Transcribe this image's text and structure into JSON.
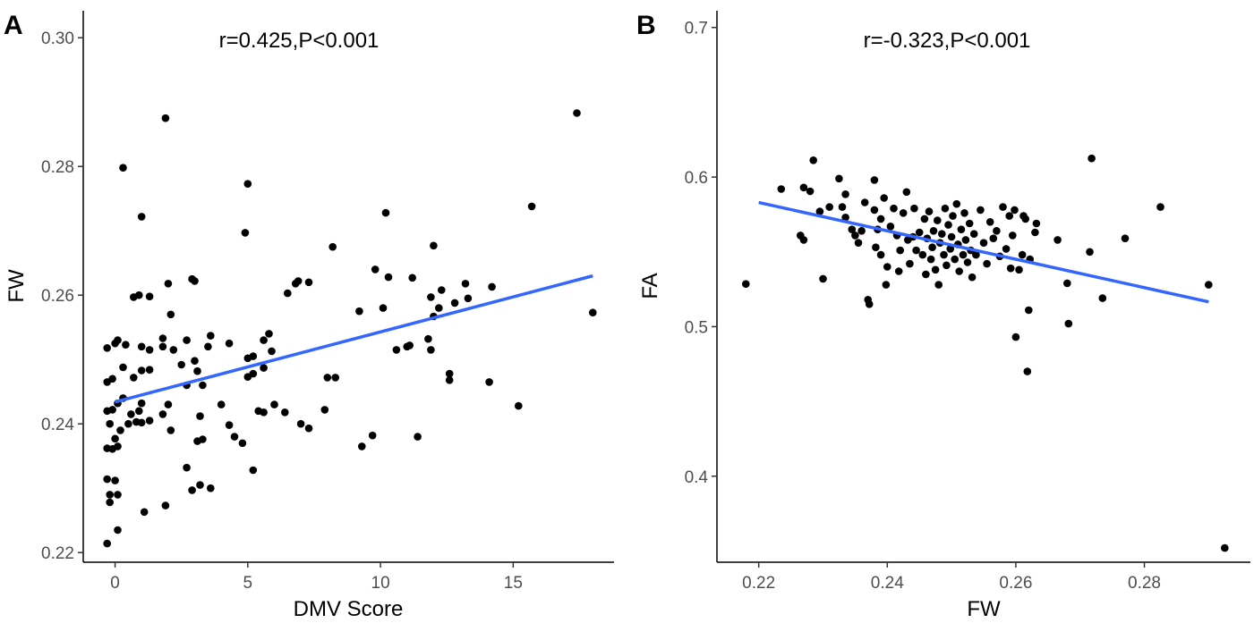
{
  "chart_data": [
    {
      "type": "scatter",
      "panel_label": "A",
      "annotation": "r=0.425,P<0.001",
      "xlabel": "DMV Score",
      "ylabel": "FW",
      "xlim": [
        -1.2,
        18.8
      ],
      "ylim": [
        0.2185,
        0.3042
      ],
      "x_ticks": [
        0,
        5,
        10,
        15
      ],
      "x_tick_labels": [
        "0",
        "5",
        "10",
        "15"
      ],
      "y_ticks": [
        0.22,
        0.24,
        0.26,
        0.28,
        0.3
      ],
      "y_tick_labels": [
        "0.22",
        "0.24",
        "0.26",
        "0.28",
        "0.30"
      ],
      "grid": false,
      "point_color": "#000000",
      "fit_line": {
        "color": "#3366FF",
        "x": [
          0,
          18
        ],
        "y": [
          0.2434,
          0.263
        ]
      },
      "points": [
        [
          -0.3,
          0.2214
        ],
        [
          -0.3,
          0.2314
        ],
        [
          -0.2,
          0.2278
        ],
        [
          -0.2,
          0.229
        ],
        [
          0.0,
          0.2312
        ],
        [
          0.1,
          0.229
        ],
        [
          0.1,
          0.2235
        ],
        [
          1.1,
          0.2263
        ],
        [
          1.9,
          0.2273
        ],
        [
          -0.3,
          0.2362
        ],
        [
          -0.1,
          0.2361
        ],
        [
          0.0,
          0.2377
        ],
        [
          0.1,
          0.2365
        ],
        [
          0.2,
          0.239
        ],
        [
          -0.2,
          0.24
        ],
        [
          0.5,
          0.24
        ],
        [
          0.8,
          0.2403
        ],
        [
          1.0,
          0.2402
        ],
        [
          1.3,
          0.2405
        ],
        [
          -0.3,
          0.242
        ],
        [
          -0.1,
          0.2422
        ],
        [
          0.1,
          0.2432
        ],
        [
          0.3,
          0.244
        ],
        [
          0.6,
          0.2415
        ],
        [
          0.9,
          0.242
        ],
        [
          1.0,
          0.2432
        ],
        [
          1.8,
          0.2415
        ],
        [
          2.0,
          0.243
        ],
        [
          2.1,
          0.239
        ],
        [
          -0.3,
          0.2465
        ],
        [
          -0.1,
          0.247
        ],
        [
          0.3,
          0.2488
        ],
        [
          0.7,
          0.2472
        ],
        [
          1.0,
          0.2483
        ],
        [
          1.3,
          0.2484
        ],
        [
          -0.3,
          0.2518
        ],
        [
          0.0,
          0.2525
        ],
        [
          0.1,
          0.253
        ],
        [
          0.4,
          0.2523
        ],
        [
          1.0,
          0.252
        ],
        [
          1.3,
          0.2515
        ],
        [
          1.8,
          0.252
        ],
        [
          2.2,
          0.2515
        ],
        [
          2.7,
          0.253
        ],
        [
          0.7,
          0.2597
        ],
        [
          0.9,
          0.26
        ],
        [
          1.3,
          0.2598
        ],
        [
          2.0,
          0.2618
        ],
        [
          2.1,
          0.257
        ],
        [
          1.8,
          0.2533
        ],
        [
          0.3,
          0.2798
        ],
        [
          1.9,
          0.2875
        ],
        [
          1.0,
          0.2722
        ],
        [
          2.5,
          0.2492
        ],
        [
          2.7,
          0.246
        ],
        [
          3.0,
          0.2498
        ],
        [
          3.1,
          0.2482
        ],
        [
          3.3,
          0.246
        ],
        [
          3.5,
          0.252
        ],
        [
          3.6,
          0.2537
        ],
        [
          4.0,
          0.243
        ],
        [
          4.3,
          0.2525
        ],
        [
          4.3,
          0.2398
        ],
        [
          4.5,
          0.238
        ],
        [
          4.8,
          0.237
        ],
        [
          2.9,
          0.2625
        ],
        [
          3.0,
          0.2622
        ],
        [
          3.1,
          0.2373
        ],
        [
          3.3,
          0.2376
        ],
        [
          3.2,
          0.2412
        ],
        [
          2.7,
          0.2332
        ],
        [
          2.9,
          0.2297
        ],
        [
          3.2,
          0.2305
        ],
        [
          3.6,
          0.23
        ],
        [
          5.0,
          0.2473
        ],
        [
          5.0,
          0.2502
        ],
        [
          5.2,
          0.2478
        ],
        [
          5.2,
          0.2505
        ],
        [
          5.4,
          0.242
        ],
        [
          5.6,
          0.2418
        ],
        [
          5.6,
          0.2487
        ],
        [
          5.6,
          0.253
        ],
        [
          5.8,
          0.254
        ],
        [
          5.9,
          0.2513
        ],
        [
          5.2,
          0.2328
        ],
        [
          6.0,
          0.243
        ],
        [
          6.4,
          0.2418
        ],
        [
          6.5,
          0.2603
        ],
        [
          6.8,
          0.2618
        ],
        [
          6.9,
          0.2622
        ],
        [
          7.3,
          0.262
        ],
        [
          7.0,
          0.24
        ],
        [
          7.3,
          0.2393
        ],
        [
          7.9,
          0.2422
        ],
        [
          8.0,
          0.2472
        ],
        [
          8.2,
          0.2675
        ],
        [
          8.3,
          0.2472
        ],
        [
          5.0,
          0.2773
        ],
        [
          4.9,
          0.2697
        ],
        [
          9.2,
          0.2575
        ],
        [
          9.3,
          0.2365
        ],
        [
          9.7,
          0.2382
        ],
        [
          9.8,
          0.264
        ],
        [
          10.1,
          0.258
        ],
        [
          10.3,
          0.2628
        ],
        [
          10.2,
          0.2728
        ],
        [
          10.6,
          0.2515
        ],
        [
          11.0,
          0.252
        ],
        [
          11.1,
          0.2522
        ],
        [
          11.2,
          0.2627
        ],
        [
          11.4,
          0.238
        ],
        [
          11.8,
          0.2532
        ],
        [
          11.9,
          0.2515
        ],
        [
          11.9,
          0.2597
        ],
        [
          12.0,
          0.2567
        ],
        [
          12.0,
          0.2677
        ],
        [
          12.2,
          0.258
        ],
        [
          12.3,
          0.2608
        ],
        [
          12.6,
          0.2478
        ],
        [
          12.6,
          0.2468
        ],
        [
          12.8,
          0.2588
        ],
        [
          13.2,
          0.2618
        ],
        [
          13.3,
          0.2595
        ],
        [
          14.1,
          0.2465
        ],
        [
          14.2,
          0.2613
        ],
        [
          15.2,
          0.2428
        ],
        [
          15.7,
          0.2738
        ],
        [
          17.4,
          0.2883
        ],
        [
          18.0,
          0.2573
        ]
      ]
    },
    {
      "type": "scatter",
      "panel_label": "B",
      "annotation": "r=-0.323,P<0.001",
      "xlabel": "FW",
      "ylabel": "FA",
      "xlim": [
        0.2135,
        0.2965
      ],
      "ylim": [
        0.3425,
        0.7112
      ],
      "x_ticks": [
        0.22,
        0.24,
        0.26,
        0.28
      ],
      "x_tick_labels": [
        "0.22",
        "0.24",
        "0.26",
        "0.28"
      ],
      "y_ticks": [
        0.4,
        0.5,
        0.6,
        0.7
      ],
      "y_tick_labels": [
        "0.4",
        "0.5",
        "0.6",
        "0.7"
      ],
      "grid": false,
      "point_color": "#000000",
      "fit_line": {
        "color": "#3366FF",
        "x": [
          0.22,
          0.29
        ],
        "y": [
          0.583,
          0.5166
        ]
      },
      "points": [
        [
          0.218,
          0.5285
        ],
        [
          0.2235,
          0.592
        ],
        [
          0.2265,
          0.561
        ],
        [
          0.227,
          0.558
        ],
        [
          0.227,
          0.593
        ],
        [
          0.228,
          0.5905
        ],
        [
          0.2285,
          0.6112
        ],
        [
          0.2295,
          0.577
        ],
        [
          0.23,
          0.532
        ],
        [
          0.231,
          0.58
        ],
        [
          0.2325,
          0.599
        ],
        [
          0.233,
          0.58
        ],
        [
          0.2335,
          0.573
        ],
        [
          0.2335,
          0.5885
        ],
        [
          0.2345,
          0.565
        ],
        [
          0.235,
          0.561
        ],
        [
          0.2355,
          0.556
        ],
        [
          0.236,
          0.564
        ],
        [
          0.2365,
          0.583
        ],
        [
          0.237,
          0.518
        ],
        [
          0.2372,
          0.515
        ],
        [
          0.238,
          0.598
        ],
        [
          0.238,
          0.578
        ],
        [
          0.2382,
          0.553
        ],
        [
          0.2385,
          0.565
        ],
        [
          0.239,
          0.572
        ],
        [
          0.239,
          0.548
        ],
        [
          0.2395,
          0.586
        ],
        [
          0.2398,
          0.528
        ],
        [
          0.24,
          0.54
        ],
        [
          0.2405,
          0.567
        ],
        [
          0.241,
          0.579
        ],
        [
          0.2415,
          0.561
        ],
        [
          0.2418,
          0.537
        ],
        [
          0.242,
          0.551
        ],
        [
          0.2425,
          0.576
        ],
        [
          0.243,
          0.59
        ],
        [
          0.2432,
          0.558
        ],
        [
          0.2435,
          0.542
        ],
        [
          0.244,
          0.56
        ],
        [
          0.2442,
          0.579
        ],
        [
          0.2445,
          0.551
        ],
        [
          0.245,
          0.563
        ],
        [
          0.2455,
          0.548
        ],
        [
          0.2458,
          0.572
        ],
        [
          0.246,
          0.535
        ],
        [
          0.2462,
          0.559
        ],
        [
          0.2465,
          0.577
        ],
        [
          0.2468,
          0.545
        ],
        [
          0.247,
          0.553
        ],
        [
          0.2472,
          0.564
        ],
        [
          0.2475,
          0.538
        ],
        [
          0.2478,
          0.571
        ],
        [
          0.248,
          0.528
        ],
        [
          0.2482,
          0.556
        ],
        [
          0.2485,
          0.562
        ],
        [
          0.2488,
          0.548
        ],
        [
          0.249,
          0.579
        ],
        [
          0.2492,
          0.541
        ],
        [
          0.2495,
          0.568
        ],
        [
          0.2498,
          0.552
        ],
        [
          0.25,
          0.56
        ],
        [
          0.2502,
          0.574
        ],
        [
          0.2505,
          0.545
        ],
        [
          0.2508,
          0.582
        ],
        [
          0.251,
          0.555
        ],
        [
          0.2512,
          0.537
        ],
        [
          0.2515,
          0.565
        ],
        [
          0.2518,
          0.548
        ],
        [
          0.252,
          0.576
        ],
        [
          0.2522,
          0.558
        ],
        [
          0.2525,
          0.543
        ],
        [
          0.2528,
          0.569
        ],
        [
          0.253,
          0.551
        ],
        [
          0.2532,
          0.533
        ],
        [
          0.2535,
          0.562
        ],
        [
          0.2538,
          0.548
        ],
        [
          0.2545,
          0.578
        ],
        [
          0.255,
          0.556
        ],
        [
          0.2555,
          0.542
        ],
        [
          0.256,
          0.57
        ],
        [
          0.2565,
          0.559
        ],
        [
          0.257,
          0.564
        ],
        [
          0.2575,
          0.547
        ],
        [
          0.258,
          0.58
        ],
        [
          0.2585,
          0.552
        ],
        [
          0.259,
          0.574
        ],
        [
          0.2592,
          0.539
        ],
        [
          0.2595,
          0.561
        ],
        [
          0.2598,
          0.578
        ],
        [
          0.26,
          0.493
        ],
        [
          0.2605,
          0.538
        ],
        [
          0.261,
          0.548
        ],
        [
          0.2612,
          0.574
        ],
        [
          0.2615,
          0.572
        ],
        [
          0.2618,
          0.47
        ],
        [
          0.262,
          0.511
        ],
        [
          0.2622,
          0.545
        ],
        [
          0.263,
          0.563
        ],
        [
          0.2632,
          0.569
        ],
        [
          0.2665,
          0.558
        ],
        [
          0.268,
          0.529
        ],
        [
          0.2682,
          0.502
        ],
        [
          0.2715,
          0.55
        ],
        [
          0.2718,
          0.6125
        ],
        [
          0.2735,
          0.519
        ],
        [
          0.277,
          0.559
        ],
        [
          0.2825,
          0.58
        ],
        [
          0.29,
          0.528
        ],
        [
          0.2925,
          0.352
        ]
      ]
    }
  ]
}
